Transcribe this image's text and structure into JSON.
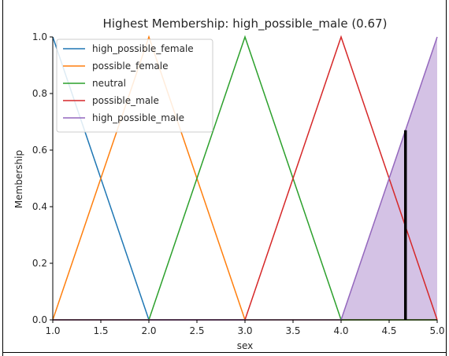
{
  "chart_data": {
    "type": "line",
    "title": "Highest Membership: high_possible_male (0.67)",
    "xlabel": "sex",
    "ylabel": "Membership",
    "xlim": [
      1.0,
      5.0
    ],
    "ylim": [
      0.0,
      1.0
    ],
    "xticks": [
      "1.0",
      "1.5",
      "2.0",
      "2.5",
      "3.0",
      "3.5",
      "4.0",
      "4.5",
      "5.0"
    ],
    "yticks": [
      "0.0",
      "0.2",
      "0.4",
      "0.6",
      "0.8",
      "1.0"
    ],
    "grid": false,
    "legend_position": "top-left",
    "series": [
      {
        "name": "high_possible_female",
        "color": "#1f77b4",
        "x": [
          1.0,
          2.0,
          5.0
        ],
        "y": [
          1.0,
          0.0,
          0.0
        ]
      },
      {
        "name": "possible_female",
        "color": "#ff7f0e",
        "x": [
          1.0,
          2.0,
          3.0,
          5.0
        ],
        "y": [
          0.0,
          1.0,
          0.0,
          0.0
        ]
      },
      {
        "name": "neutral",
        "color": "#2ca02c",
        "x": [
          1.0,
          2.0,
          3.0,
          4.0,
          5.0
        ],
        "y": [
          0.0,
          0.0,
          1.0,
          0.0,
          0.0
        ]
      },
      {
        "name": "possible_male",
        "color": "#d62728",
        "x": [
          1.0,
          3.0,
          4.0,
          5.0
        ],
        "y": [
          0.0,
          0.0,
          1.0,
          0.0
        ]
      },
      {
        "name": "high_possible_male",
        "color": "#9467bd",
        "x": [
          1.0,
          4.0,
          5.0
        ],
        "y": [
          0.0,
          0.0,
          1.0
        ]
      }
    ],
    "fill": {
      "series": "high_possible_male",
      "color": "#9467bd",
      "opacity": 0.4,
      "x": [
        4.0,
        5.0
      ],
      "y": [
        0.0,
        1.0
      ]
    },
    "marker_line": {
      "x": 4.67,
      "y0": 0.0,
      "y1": 0.67,
      "color": "#000000"
    }
  }
}
